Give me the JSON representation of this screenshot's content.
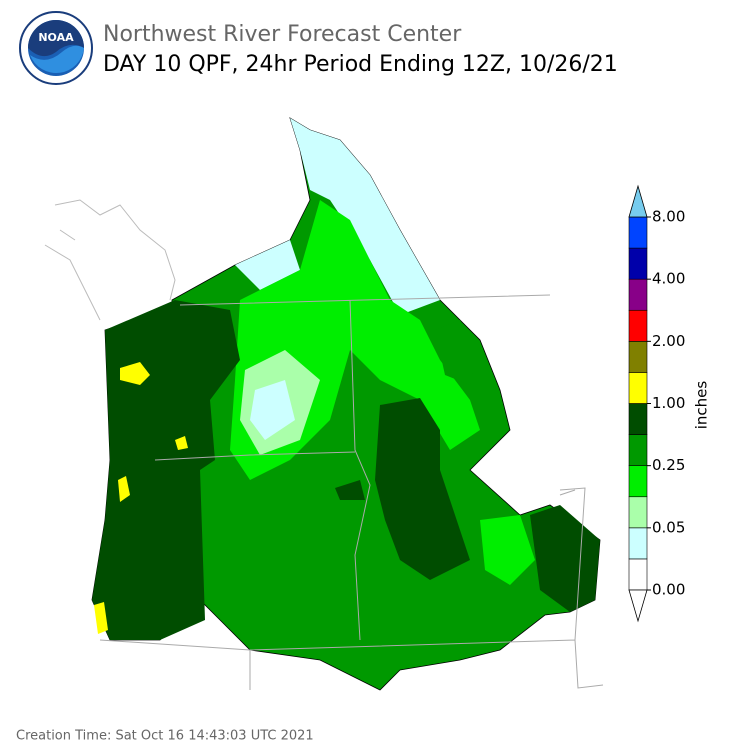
{
  "logo": "NOAA",
  "header": {
    "title": "Northwest River Forecast Center",
    "subtitle": "DAY 10 QPF, 24hr Period Ending 12Z, 10/26/21"
  },
  "legend": {
    "label": "inches",
    "colors": [
      "#ffffff",
      "#ccffff",
      "#aaffaa",
      "#00ee00",
      "#009900",
      "#004d00",
      "#ffff00",
      "#808000",
      "#ff0000",
      "#880088",
      "#0000aa",
      "#0044ff"
    ],
    "over_color": "#77ccee",
    "ticks": [
      "0.00",
      "0.05",
      "0.25",
      "1.00",
      "2.00",
      "4.00",
      "8.00"
    ]
  },
  "footer": "Creation Time: Sat Oct 16 14:43:03 UTC 2021"
}
